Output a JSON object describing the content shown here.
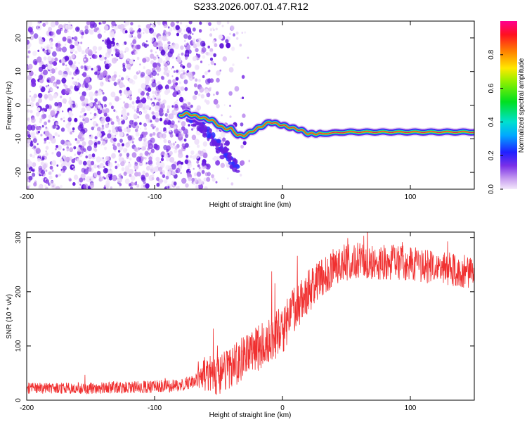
{
  "title": "S233.2026.007.01.47.R12",
  "colors": {
    "ridge_line": "#e03040",
    "snr_line": "#f03030",
    "speckle": "#6a1fe0",
    "frame": "#000000"
  },
  "chart_data": [
    {
      "type": "heatmap",
      "title": "S233.2026.007.01.47.R12",
      "xlabel": "Height of straight line (km)",
      "ylabel": "Frequency (Hz)",
      "xlim": [
        -200,
        150
      ],
      "ylim": [
        -25,
        25
      ],
      "x_ticks": [
        -200,
        -100,
        0,
        100
      ],
      "x_tick_labels": [
        "-200",
        "-100",
        "0",
        "100"
      ],
      "y_ticks": [
        -20,
        -10,
        0,
        10,
        20
      ],
      "y_tick_labels": [
        "-20",
        "-10",
        "0",
        "10",
        "20"
      ],
      "colorbar": {
        "label": "Normalized spectral amplitude",
        "range": [
          0,
          1
        ],
        "ticks": [
          0.0,
          0.2,
          0.4,
          0.6,
          0.8
        ],
        "tick_labels": [
          "0.0",
          "0.2",
          "0.4",
          "0.6",
          "0.8"
        ],
        "colormap": "rainbow (violet to red)"
      },
      "ridge": {
        "x": [
          -80,
          -75,
          -70,
          -65,
          -60,
          -55,
          -50,
          -45,
          -40,
          -35,
          -30,
          -25,
          -20,
          -15,
          -10,
          -5,
          0,
          5,
          10,
          15,
          20,
          30,
          50,
          80,
          110,
          150
        ],
        "y": [
          -3,
          -2.5,
          -3,
          -3.5,
          -4,
          -4.5,
          -6,
          -7,
          -7,
          -9,
          -9,
          -8,
          -7,
          -6,
          -5,
          -5.5,
          -6,
          -6.5,
          -7,
          -7.5,
          -8.5,
          -8.5,
          -8,
          -8,
          -8,
          -8
        ]
      },
      "scatter_region": {
        "x_range": [
          -200,
          -30
        ],
        "y_range": [
          -25,
          25
        ],
        "description_free": true
      }
    },
    {
      "type": "line",
      "xlabel": "Height of straight line (km)",
      "ylabel": "SNR (10 * v/v)",
      "xlim": [
        -200,
        150
      ],
      "ylim": [
        0,
        310
      ],
      "x_ticks": [
        -200,
        -100,
        0,
        100
      ],
      "x_tick_labels": [
        "-200",
        "-100",
        "0",
        "100"
      ],
      "y_ticks": [
        0,
        100,
        200,
        300
      ],
      "y_tick_labels": [
        "0",
        "100",
        "200",
        "300"
      ],
      "envelope": {
        "x": [
          -200,
          -150,
          -100,
          -80,
          -70,
          -60,
          -50,
          -40,
          -30,
          -20,
          -10,
          0,
          10,
          20,
          30,
          40,
          50,
          60,
          80,
          100,
          120,
          150
        ],
        "y": [
          22,
          22,
          25,
          28,
          35,
          50,
          45,
          60,
          80,
          95,
          110,
          130,
          170,
          200,
          225,
          245,
          255,
          258,
          255,
          252,
          245,
          235
        ]
      },
      "noise_amplitude": {
        "x": [
          -200,
          -70,
          -60,
          -40,
          0,
          40,
          150
        ],
        "y": [
          10,
          12,
          35,
          40,
          45,
          35,
          30
        ]
      }
    }
  ]
}
